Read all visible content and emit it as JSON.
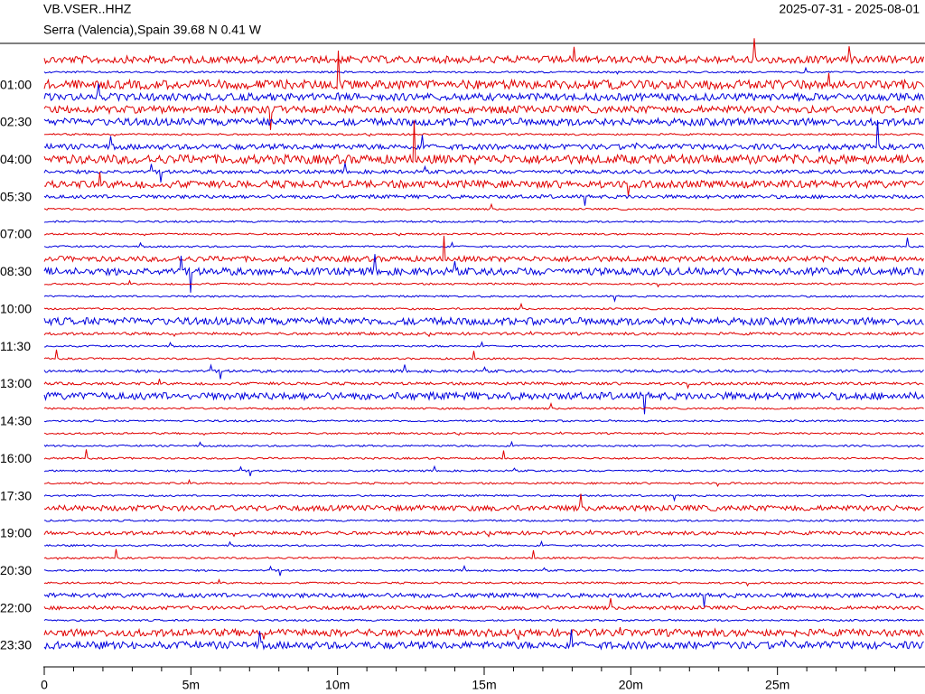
{
  "chart_data": {
    "type": "helicorder",
    "title": "VB.VSER..HHZ",
    "subtitle": "Serra (Valencia),Spain  39.68 N 0.41 W",
    "date_range": "2025-07-31 - 2025-08-01",
    "colors": [
      "#e00000",
      "#0000dd"
    ],
    "row_step": 0.5,
    "amplitude": [
      4,
      1,
      5,
      4,
      4,
      4,
      1,
      3,
      5,
      2,
      4,
      2,
      1,
      1,
      1,
      1,
      3,
      4,
      1,
      1,
      1,
      4,
      1.5,
      1,
      1,
      1.5,
      1.5,
      4,
      1,
      1,
      1,
      1,
      1,
      1,
      1,
      1,
      3,
      1,
      2,
      1,
      1,
      1,
      1,
      2.5,
      2,
      1,
      4,
      4
    ],
    "ylim": [
      0,
      23.5
    ],
    "yticks": [
      {
        "value": 1,
        "label": "01:00"
      },
      {
        "value": 2.5,
        "label": "02:30"
      },
      {
        "value": 4,
        "label": "04:00"
      },
      {
        "value": 5.5,
        "label": "05:30"
      },
      {
        "value": 7,
        "label": "07:00"
      },
      {
        "value": 8.5,
        "label": "08:30"
      },
      {
        "value": 10,
        "label": "10:00"
      },
      {
        "value": 11.5,
        "label": "11:30"
      },
      {
        "value": 13,
        "label": "13:00"
      },
      {
        "value": 14.5,
        "label": "14:30"
      },
      {
        "value": 16,
        "label": "16:00"
      },
      {
        "value": 17.5,
        "label": "17:30"
      },
      {
        "value": 19,
        "label": "19:00"
      },
      {
        "value": 20.5,
        "label": "20:30"
      },
      {
        "value": 22,
        "label": "22:00"
      },
      {
        "value": 23.5,
        "label": "23:30"
      }
    ],
    "xlim": [
      0,
      30
    ],
    "xticks": [
      0,
      {
        "value": 5,
        "label": "5m"
      },
      {
        "value": 10,
        "label": "10m"
      },
      {
        "value": 15,
        "label": "15m"
      },
      {
        "value": 20,
        "label": "20m"
      },
      {
        "value": 25,
        "label": "25m"
      }
    ],
    "xminor_step": 1
  }
}
